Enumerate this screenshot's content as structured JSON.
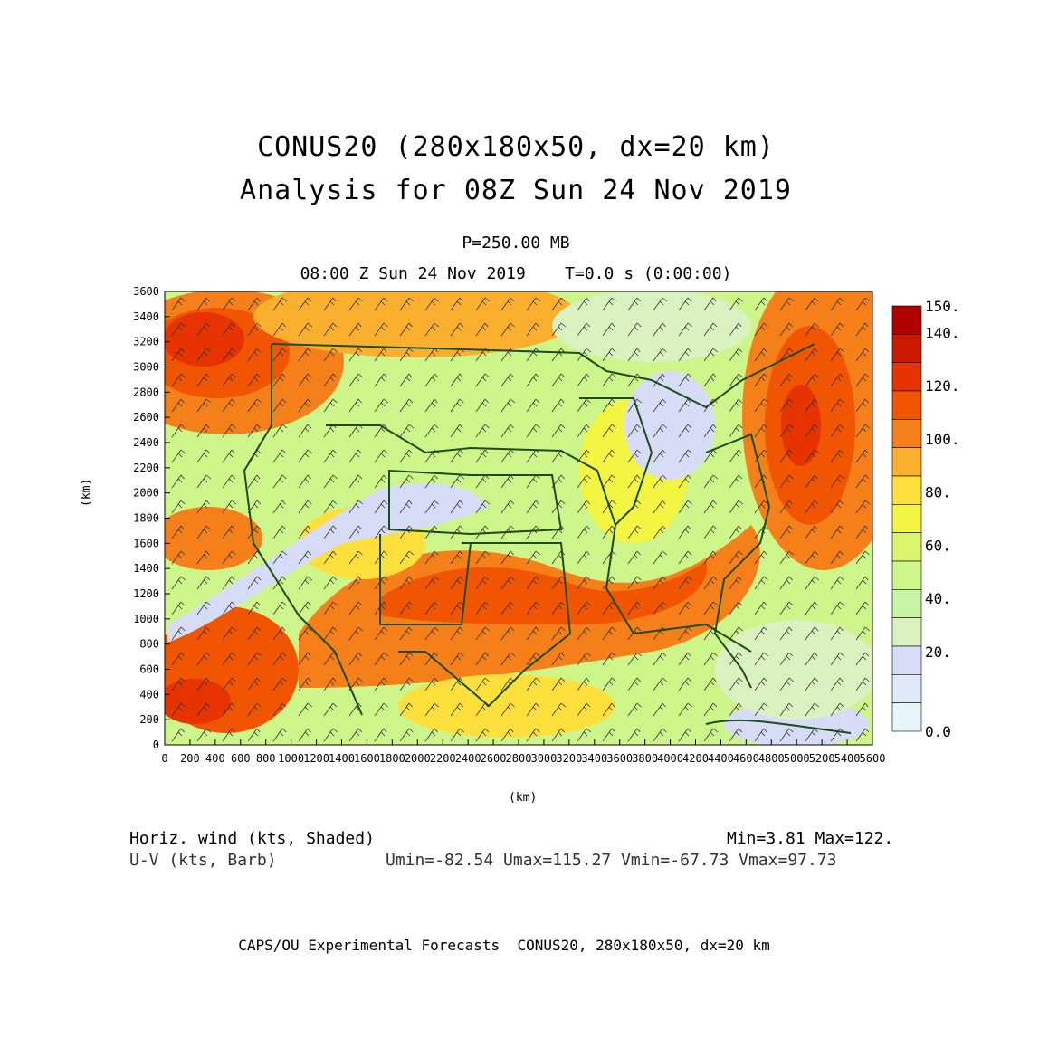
{
  "title": {
    "line1": "CONUS20 (280x180x50, dx=20 km)",
    "line2": "Analysis for 08Z Sun 24 Nov 2019"
  },
  "subtitle": {
    "level": "P=250.00 MB",
    "time": "08:00 Z Sun 24 Nov 2019    T=0.0 s (0:00:00)"
  },
  "axes": {
    "x_label": "(km)",
    "y_label": "(km)",
    "x_ticks": [
      "0",
      "200",
      "400",
      "600",
      "800",
      "1000",
      "1200",
      "1400",
      "1600",
      "1800",
      "2000",
      "2200",
      "2400",
      "2600",
      "2800",
      "3000",
      "3200",
      "3400",
      "3600",
      "3800",
      "4000",
      "4200",
      "4400",
      "4600",
      "4800",
      "5000",
      "5200",
      "5400",
      "5600"
    ],
    "y_ticks": [
      "0",
      "200",
      "400",
      "600",
      "800",
      "1000",
      "1200",
      "1400",
      "1600",
      "1800",
      "2000",
      "2200",
      "2400",
      "2600",
      "2800",
      "3000",
      "3200",
      "3400",
      "3600"
    ]
  },
  "colorbar": {
    "labels": [
      "150.",
      "140.",
      "120.",
      "100.",
      "80.",
      "60.",
      "40.",
      "20.",
      "0.0"
    ],
    "colors": [
      "#b20000",
      "#cc1a00",
      "#e63300",
      "#f25500",
      "#f5801a",
      "#fab02e",
      "#fde03c",
      "#f2f541",
      "#d9f56e",
      "#cdf58a",
      "#c5f5a5",
      "#d9f2c0",
      "#d6dcf5",
      "#dfe9f7",
      "#e6f6fa"
    ]
  },
  "field_info": {
    "var1": "Horiz. wind (kts, Shaded)",
    "var2": "U-V (kts, Barb)",
    "minmax": "Min=3.81 Max=122.",
    "uv": "Umin=-82.54 Umax=115.27 Vmin=-67.73 Vmax=97.73"
  },
  "footer": "CAPS/OU Experimental Forecasts  CONUS20, 280x180x50, dx=20 km",
  "map": {
    "type": "wind-speed-shaded-map",
    "region": "CONUS",
    "x_range_km": [
      0,
      5600
    ],
    "y_range_km": [
      0,
      3600
    ],
    "boundary_color": "#1a4d1a",
    "barb_color": "#333333",
    "wind_max_band_color": "#f05a10"
  }
}
